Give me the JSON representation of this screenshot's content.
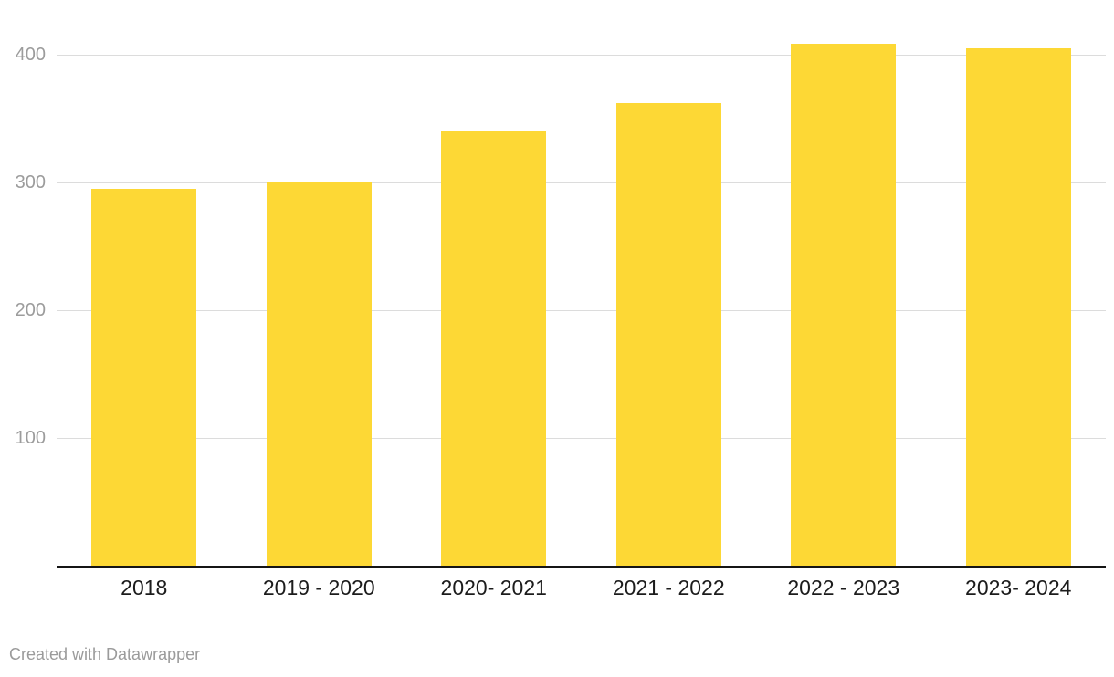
{
  "chart_data": {
    "type": "bar",
    "title": "",
    "xlabel": "",
    "ylabel": "",
    "categories": [
      "2018",
      "2019 - 2020",
      "2020- 2021",
      "2021 - 2022",
      "2022 - 2023",
      "2023- 2024"
    ],
    "values": [
      295,
      300,
      340,
      362,
      409,
      405
    ],
    "ylim": [
      0,
      433
    ],
    "yticks": [
      100,
      200,
      300,
      400
    ],
    "grid": true,
    "legend": "none",
    "bar_color": "#FDD835"
  },
  "footer": {
    "credit": "Created with Datawrapper"
  },
  "colors": {
    "background": "#ffffff",
    "bar": "#FDD835",
    "axis_line": "#151515",
    "gridline": "#dcdcdc",
    "ytick_label": "#9c9c9c",
    "category_label": "#1c1c1c",
    "credit_text": "#9b9b9b"
  }
}
